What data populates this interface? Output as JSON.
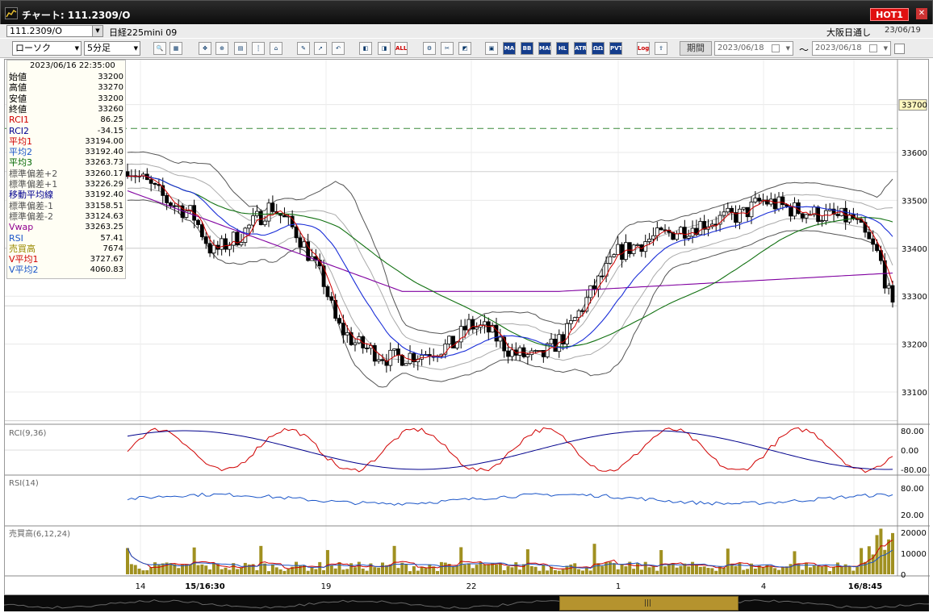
{
  "window": {
    "title": "チャート: 111.2309/O",
    "hot_badge": "HOT1",
    "close": "✕"
  },
  "symbol_bar": {
    "code": "111.2309/O",
    "name": "日経225mini 09",
    "market": "大阪日通し",
    "date": "23/06/19"
  },
  "toolbar": {
    "chart_type": "ローソク",
    "interval": "5分足",
    "period_label": "期間",
    "date_from": "2023/06/18",
    "date_to": "2023/06/18",
    "range_sep": "〜",
    "buttons": [
      "MA",
      "BB",
      "MAE",
      "HL",
      "ATR",
      "ΩΩ",
      "PVT",
      "Log",
      "ALL"
    ]
  },
  "info_panel": {
    "datetime": "2023/06/16 22:35:00",
    "rows": [
      {
        "label": "始値",
        "value": "33200",
        "color": "#000000"
      },
      {
        "label": "高値",
        "value": "33270",
        "color": "#000000"
      },
      {
        "label": "安値",
        "value": "33200",
        "color": "#000000"
      },
      {
        "label": "終値",
        "value": "33260",
        "color": "#000000"
      },
      {
        "label": "RCI1",
        "value": "86.25",
        "color": "#d00000"
      },
      {
        "label": "RCI2",
        "value": "-34.15",
        "color": "#000090"
      },
      {
        "label": "平均1",
        "value": "33194.00",
        "color": "#d00000"
      },
      {
        "label": "平均2",
        "value": "33192.40",
        "color": "#1a55c8"
      },
      {
        "label": "平均3",
        "value": "33263.73",
        "color": "#006600"
      },
      {
        "label": "標準偏差+2",
        "value": "33260.17",
        "color": "#555555"
      },
      {
        "label": "標準偏差+1",
        "value": "33226.29",
        "color": "#555555"
      },
      {
        "label": "移動平均線",
        "value": "33192.40",
        "color": "#000090"
      },
      {
        "label": "標準偏差-1",
        "value": "33158.51",
        "color": "#555555"
      },
      {
        "label": "標準偏差-2",
        "value": "33124.63",
        "color": "#555555"
      },
      {
        "label": "Vwap",
        "value": "33263.25",
        "color": "#900090"
      },
      {
        "label": "RSI",
        "value": "57.41",
        "color": "#1a55c8"
      },
      {
        "label": "売買高",
        "value": "7674",
        "color": "#9a8a00"
      },
      {
        "label": "V平均1",
        "value": "3727.67",
        "color": "#d00000"
      },
      {
        "label": "V平均2",
        "value": "4060.83",
        "color": "#1a55c8"
      }
    ]
  },
  "chart_data": {
    "type": "candlestick",
    "price_axis": {
      "ticks": [
        33100,
        33200,
        33300,
        33400,
        33500,
        33600,
        33700
      ],
      "highlight": "33700"
    },
    "reference_line": 33650,
    "x_labels": [
      "14",
      "15/16:30",
      "19",
      "22",
      "1",
      "4",
      "16/8:45"
    ],
    "rci_panel": {
      "label": "RCI(9,36)",
      "ticks": [
        "80.00",
        "0.00",
        "-80.00"
      ]
    },
    "rsi_panel": {
      "label": "RSI(14)",
      "ticks": [
        "80.00",
        "20.00"
      ]
    },
    "volume_panel": {
      "label": "売買高(6,12,24)",
      "ticks": [
        "20000",
        "10000",
        "0"
      ]
    },
    "colors": {
      "up": "#ffffff",
      "down": "#000000",
      "ma_short": "#d00000",
      "ma_mid": "#1a2ed8",
      "ma_long": "#107010",
      "vwap": "#8000a0",
      "band": "#666666",
      "rci1": "#d00000",
      "rci2": "#00008c",
      "rsi": "#1a55c8",
      "volume": "#a09020"
    }
  }
}
